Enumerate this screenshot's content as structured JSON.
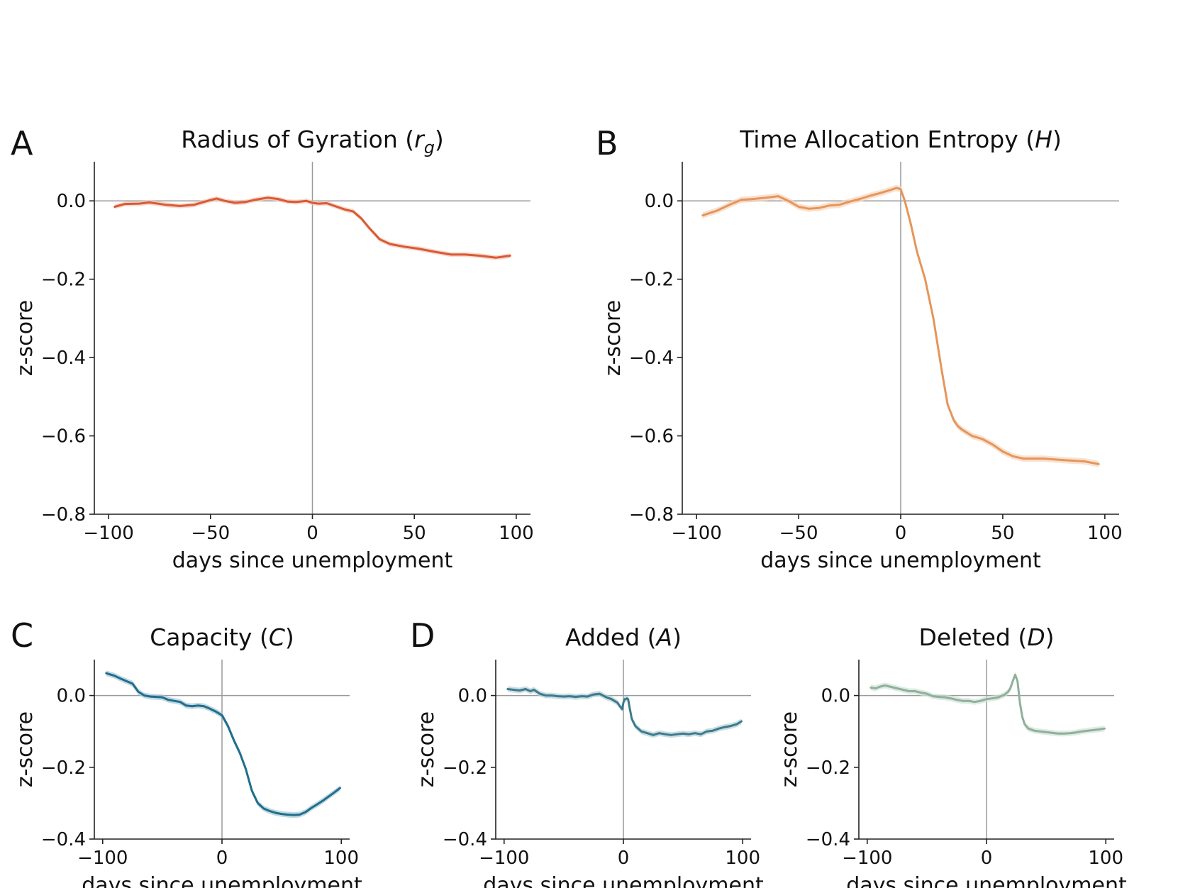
{
  "figure": {
    "panel_letters": [
      "A",
      "B",
      "C",
      "D"
    ]
  },
  "chart_data": [
    {
      "type": "line",
      "panel": "A",
      "title": "Radius of Gyration",
      "title_var": "r",
      "title_sub": "g",
      "xlabel": "days since unemployment",
      "ylabel": "z-score",
      "xlim": [
        -107,
        107
      ],
      "ylim": [
        -0.8,
        0.1
      ],
      "xticks": [
        -100,
        -50,
        0,
        50,
        100
      ],
      "xtick_labels": [
        "−100",
        "−50",
        "0",
        "50",
        "100"
      ],
      "yticks": [
        0.0,
        -0.2,
        -0.4,
        -0.6,
        -0.8
      ],
      "ytick_labels": [
        "0.0",
        "−0.2",
        "−0.4",
        "−0.6",
        "−0.8"
      ],
      "color": "#d95a35",
      "band_color": "#f4c7b6",
      "band": 0.006,
      "x": [
        -97,
        -92,
        -85,
        -80,
        -72,
        -65,
        -58,
        -50,
        -47,
        -43,
        -38,
        -33,
        -28,
        -22,
        -17,
        -12,
        -8,
        -3,
        0,
        3,
        7,
        12,
        16,
        20,
        24,
        28,
        33,
        38,
        45,
        52,
        60,
        68,
        75,
        82,
        90,
        97
      ],
      "y": [
        -0.015,
        -0.008,
        -0.007,
        -0.004,
        -0.01,
        -0.013,
        -0.01,
        0.002,
        0.006,
        0.0,
        -0.005,
        -0.003,
        0.003,
        0.008,
        0.005,
        -0.002,
        -0.003,
        0.0,
        -0.005,
        -0.007,
        -0.006,
        -0.015,
        -0.022,
        -0.027,
        -0.045,
        -0.07,
        -0.098,
        -0.11,
        -0.117,
        -0.122,
        -0.13,
        -0.137,
        -0.137,
        -0.14,
        -0.145,
        -0.14
      ]
    },
    {
      "type": "line",
      "panel": "B",
      "title": "Time Allocation Entropy",
      "title_var": "H",
      "title_sub": "",
      "xlabel": "days since unemployment",
      "ylabel": "z-score",
      "xlim": [
        -107,
        107
      ],
      "ylim": [
        -0.8,
        0.1
      ],
      "xticks": [
        -100,
        -50,
        0,
        50,
        100
      ],
      "xtick_labels": [
        "−100",
        "−50",
        "0",
        "50",
        "100"
      ],
      "yticks": [
        0.0,
        -0.2,
        -0.4,
        -0.6,
        -0.8
      ],
      "ytick_labels": [
        "0.0",
        "−0.2",
        "−0.4",
        "−0.6",
        "−0.8"
      ],
      "color": "#e6955a",
      "band_color": "#f7d6bd",
      "band": 0.008,
      "x": [
        -97,
        -90,
        -83,
        -78,
        -72,
        -66,
        -60,
        -55,
        -50,
        -45,
        -40,
        -35,
        -30,
        -25,
        -20,
        -15,
        -10,
        -5,
        -2,
        0,
        2,
        5,
        8,
        12,
        16,
        20,
        23,
        26,
        28,
        30,
        35,
        40,
        45,
        50,
        55,
        60,
        70,
        80,
        90,
        97
      ],
      "y": [
        -0.037,
        -0.025,
        -0.008,
        0.003,
        0.005,
        0.008,
        0.012,
        0.0,
        -0.015,
        -0.02,
        -0.018,
        -0.012,
        -0.01,
        -0.002,
        0.005,
        0.013,
        0.02,
        0.028,
        0.033,
        0.03,
        0.0,
        -0.06,
        -0.13,
        -0.2,
        -0.3,
        -0.43,
        -0.52,
        -0.56,
        -0.575,
        -0.584,
        -0.6,
        -0.608,
        -0.622,
        -0.64,
        -0.652,
        -0.658,
        -0.658,
        -0.662,
        -0.665,
        -0.672
      ]
    },
    {
      "type": "line",
      "panel": "C",
      "title": "Capacity",
      "title_var": "C",
      "title_sub": "",
      "xlabel": "days since unemployment",
      "ylabel": "z-score",
      "xlim": [
        -107,
        107
      ],
      "ylim": [
        -0.4,
        0.1
      ],
      "xticks": [
        -100,
        0,
        100
      ],
      "xtick_labels": [
        "−100",
        "0",
        "100"
      ],
      "yticks": [
        0.0,
        -0.2,
        -0.4
      ],
      "ytick_labels": [
        "0.0",
        "−0.2",
        "−0.4"
      ],
      "color": "#1f6e8c",
      "band_color": "#a9c9d6",
      "band": 0.008,
      "x": [
        -97,
        -90,
        -85,
        -80,
        -75,
        -70,
        -65,
        -60,
        -55,
        -50,
        -45,
        -40,
        -35,
        -30,
        -25,
        -20,
        -15,
        -10,
        -5,
        0,
        5,
        10,
        15,
        20,
        25,
        30,
        35,
        40,
        45,
        50,
        55,
        60,
        65,
        70,
        75,
        80,
        85,
        90,
        95,
        99
      ],
      "y": [
        0.062,
        0.055,
        0.047,
        0.04,
        0.033,
        0.01,
        0.0,
        -0.003,
        -0.004,
        -0.005,
        -0.012,
        -0.015,
        -0.018,
        -0.028,
        -0.03,
        -0.028,
        -0.03,
        -0.037,
        -0.045,
        -0.055,
        -0.085,
        -0.125,
        -0.16,
        -0.205,
        -0.265,
        -0.3,
        -0.315,
        -0.322,
        -0.327,
        -0.33,
        -0.332,
        -0.333,
        -0.332,
        -0.325,
        -0.313,
        -0.303,
        -0.292,
        -0.28,
        -0.268,
        -0.258
      ]
    },
    {
      "type": "line",
      "panel": "D",
      "title": "Added",
      "title_var": "A",
      "title_sub": "",
      "xlabel": "days since unemployment",
      "ylabel": "z-score",
      "xlim": [
        -107,
        107
      ],
      "ylim": [
        -0.4,
        0.1
      ],
      "xticks": [
        -100,
        0,
        100
      ],
      "xtick_labels": [
        "−100",
        "0",
        "100"
      ],
      "yticks": [
        0.0,
        -0.2,
        -0.4
      ],
      "ytick_labels": [
        "0.0",
        "−0.2",
        "−0.4"
      ],
      "color": "#3b7b8c",
      "band_color": "#b5d0d8",
      "band": 0.008,
      "x": [
        -97,
        -92,
        -87,
        -82,
        -78,
        -75,
        -70,
        -65,
        -60,
        -55,
        -50,
        -45,
        -40,
        -35,
        -30,
        -25,
        -20,
        -15,
        -10,
        -5,
        -3,
        -1,
        0,
        1,
        2,
        3,
        4,
        5,
        7,
        10,
        15,
        20,
        25,
        30,
        35,
        40,
        45,
        50,
        55,
        60,
        65,
        70,
        75,
        80,
        85,
        90,
        95,
        99
      ],
      "y": [
        0.018,
        0.016,
        0.014,
        0.018,
        0.012,
        0.016,
        0.005,
        0.0,
        0.0,
        -0.002,
        -0.003,
        -0.002,
        -0.004,
        -0.002,
        -0.003,
        0.003,
        0.005,
        -0.004,
        -0.01,
        -0.02,
        -0.03,
        -0.038,
        -0.02,
        -0.01,
        -0.01,
        -0.008,
        -0.01,
        -0.03,
        -0.065,
        -0.085,
        -0.1,
        -0.105,
        -0.11,
        -0.105,
        -0.108,
        -0.11,
        -0.108,
        -0.106,
        -0.108,
        -0.105,
        -0.108,
        -0.1,
        -0.098,
        -0.092,
        -0.088,
        -0.085,
        -0.08,
        -0.072
      ]
    },
    {
      "type": "line",
      "panel": "D",
      "title": "Deleted",
      "title_var": "D",
      "title_sub": "",
      "xlabel": "days since unemployment",
      "ylabel": "z-score",
      "xlim": [
        -107,
        107
      ],
      "ylim": [
        -0.4,
        0.1
      ],
      "xticks": [
        -100,
        0,
        100
      ],
      "xtick_labels": [
        "−100",
        "0",
        "100"
      ],
      "yticks": [
        0.0,
        -0.2,
        -0.4
      ],
      "ytick_labels": [
        "0.0",
        "−0.2",
        "−0.4"
      ],
      "color": "#8fb09b",
      "band_color": "#d2e2d7",
      "band": 0.008,
      "x": [
        -97,
        -93,
        -89,
        -85,
        -80,
        -75,
        -70,
        -65,
        -60,
        -55,
        -50,
        -45,
        -40,
        -35,
        -30,
        -25,
        -20,
        -15,
        -10,
        -5,
        0,
        5,
        10,
        15,
        18,
        20,
        22,
        24,
        26,
        28,
        30,
        32,
        35,
        40,
        45,
        50,
        55,
        60,
        65,
        70,
        75,
        80,
        85,
        90,
        95,
        99
      ],
      "y": [
        0.022,
        0.02,
        0.025,
        0.028,
        0.024,
        0.02,
        0.016,
        0.012,
        0.012,
        0.008,
        0.005,
        -0.002,
        -0.004,
        -0.005,
        -0.008,
        -0.012,
        -0.015,
        -0.015,
        -0.018,
        -0.015,
        -0.01,
        -0.008,
        -0.005,
        0.002,
        0.01,
        0.02,
        0.04,
        0.058,
        0.04,
        -0.02,
        -0.06,
        -0.08,
        -0.092,
        -0.098,
        -0.1,
        -0.102,
        -0.104,
        -0.106,
        -0.106,
        -0.105,
        -0.103,
        -0.1,
        -0.098,
        -0.096,
        -0.094,
        -0.092
      ]
    }
  ]
}
